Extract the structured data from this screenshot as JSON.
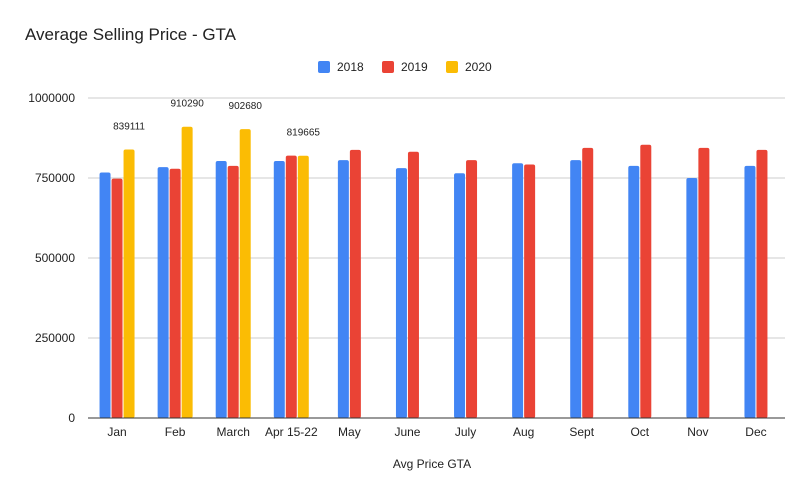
{
  "chart_data": {
    "type": "bar",
    "title": "Average Selling Price - GTA",
    "xlabel": "Avg Price GTA",
    "ylabel": "",
    "ylim": [
      0,
      1000000
    ],
    "yticks": [
      0,
      250000,
      500000,
      750000,
      1000000
    ],
    "grid": true,
    "legend_position": "top-center",
    "categories": [
      "Jan",
      "Feb",
      "March",
      "Apr 15-22",
      "May",
      "June",
      "July",
      "Aug",
      "Sept",
      "Oct",
      "Nov",
      "Dec"
    ],
    "series": [
      {
        "name": "2018",
        "color": "#4285f4",
        "values": [
          767000,
          784000,
          803000,
          803000,
          806000,
          781000,
          765000,
          796000,
          806000,
          788000,
          750000,
          788000
        ]
      },
      {
        "name": "2019",
        "color": "#ea4335",
        "values": [
          748000,
          779000,
          788000,
          820000,
          838000,
          832000,
          806000,
          792000,
          844000,
          854000,
          844000,
          838000
        ]
      },
      {
        "name": "2020",
        "color": "#fbbc04",
        "values": [
          839111,
          910290,
          902680,
          819665,
          null,
          null,
          null,
          null,
          null,
          null,
          null,
          null
        ],
        "data_labels": [
          "839111",
          "910290",
          "902680",
          "819665"
        ]
      }
    ]
  }
}
